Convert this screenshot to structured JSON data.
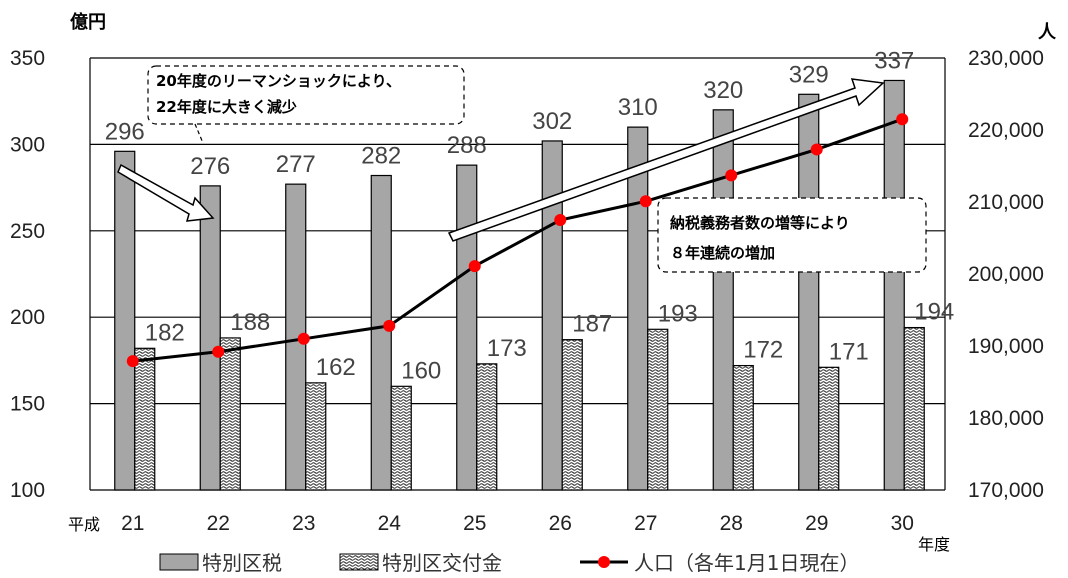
{
  "chart_data": {
    "type": "bar",
    "categories": [
      "21",
      "22",
      "23",
      "24",
      "25",
      "26",
      "27",
      "28",
      "29",
      "30"
    ],
    "x_prefix": "平成",
    "x_suffix": "年度",
    "left_axis_unit": "億円",
    "right_axis_unit": "人",
    "left_ylim": [
      100,
      350
    ],
    "left_ticks": [
      "100",
      "150",
      "200",
      "250",
      "300",
      "350"
    ],
    "right_ylim": [
      170000,
      230000
    ],
    "right_ticks": [
      "170,000",
      "180,000",
      "190,000",
      "200,000",
      "210,000",
      "220,000",
      "230,000"
    ],
    "grid": true,
    "legend_position": "bottom",
    "series": [
      {
        "name": "特別区税",
        "kind": "bar",
        "axis": "left",
        "color": "#a6a6a6",
        "values": [
          296,
          276,
          277,
          282,
          288,
          302,
          310,
          320,
          329,
          337
        ]
      },
      {
        "name": "特別区交付金",
        "kind": "bar",
        "axis": "left",
        "pattern": "wave-hatch",
        "values": [
          182,
          188,
          162,
          160,
          173,
          187,
          193,
          172,
          171,
          194
        ]
      },
      {
        "name": "人口（各年1月1日現在）",
        "kind": "line",
        "axis": "right",
        "line_color": "#000000",
        "marker_color": "#ff0000",
        "values": [
          187900,
          189200,
          191000,
          192800,
          201100,
          207500,
          210100,
          213700,
          217300,
          221500
        ]
      }
    ],
    "annotations": [
      {
        "lines": [
          "20年度のリーマンショックにより、",
          "22年度に大きく減少"
        ]
      },
      {
        "lines": [
          "納税義務者数の増等により",
          "８年連続の増加"
        ]
      }
    ]
  }
}
